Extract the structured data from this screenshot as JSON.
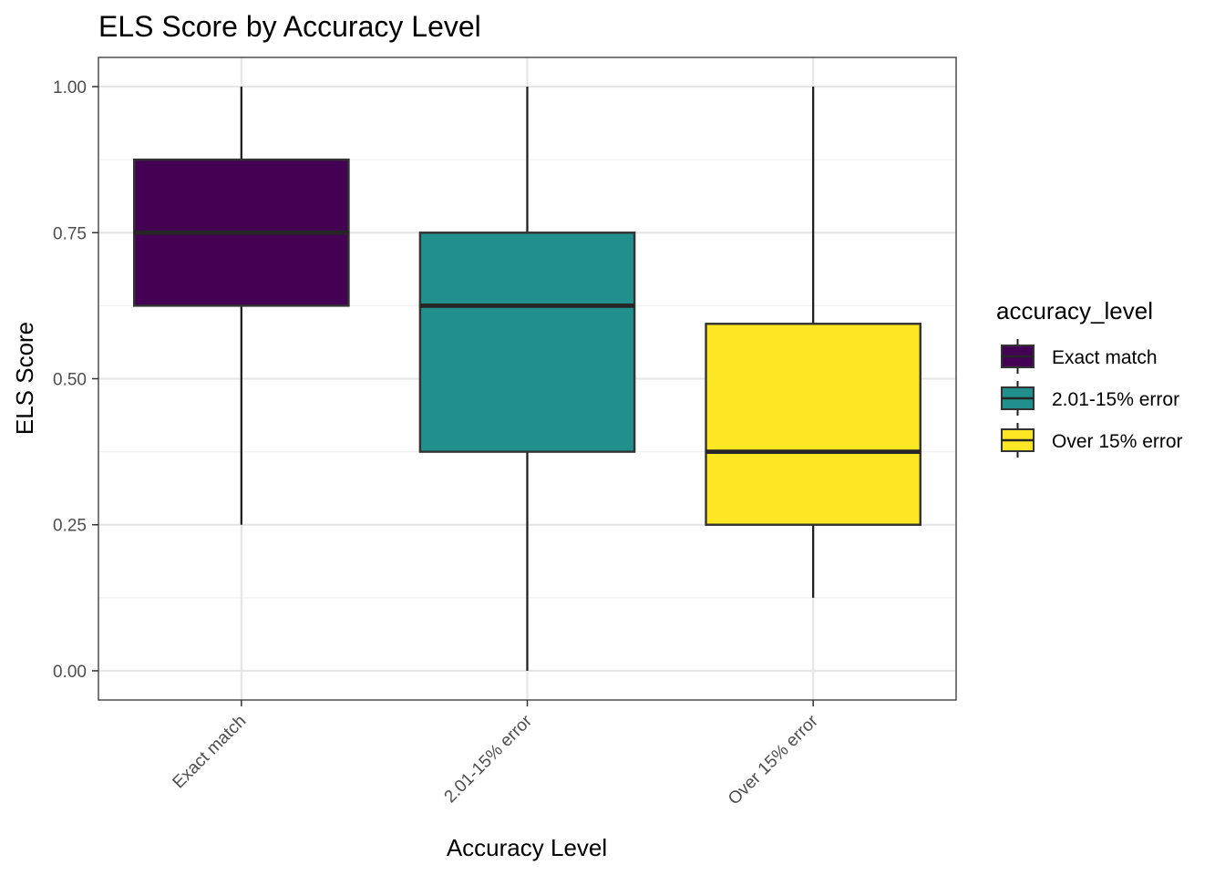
{
  "chart_data": {
    "type": "boxplot",
    "title": "ELS Score by Accuracy Level",
    "xlabel": "Accuracy Level",
    "ylabel": "ELS Score",
    "ylim": [
      -0.05,
      1.05
    ],
    "y_ticks": [
      "0.00",
      "0.25",
      "0.50",
      "0.75",
      "1.00"
    ],
    "y_tick_values": [
      0,
      0.25,
      0.5,
      0.75,
      1
    ],
    "grid": true,
    "legend_position": "right",
    "legend_title": "accuracy_level",
    "categories": [
      "Exact match",
      "2.01-15% error",
      "Over 15% error"
    ],
    "boxes": [
      {
        "category": "Exact match",
        "min": 0.25,
        "q1": 0.625,
        "median": 0.75,
        "q3": 0.875,
        "max": 1.0,
        "color": "#440154"
      },
      {
        "category": "2.01-15% error",
        "min": 0.0,
        "q1": 0.375,
        "median": 0.625,
        "q3": 0.75,
        "max": 1.0,
        "color": "#21908C"
      },
      {
        "category": "Over 15% error",
        "min": 0.125,
        "q1": 0.25,
        "median": 0.375,
        "q3": 0.594,
        "max": 1.0,
        "color": "#FDE725"
      }
    ]
  }
}
